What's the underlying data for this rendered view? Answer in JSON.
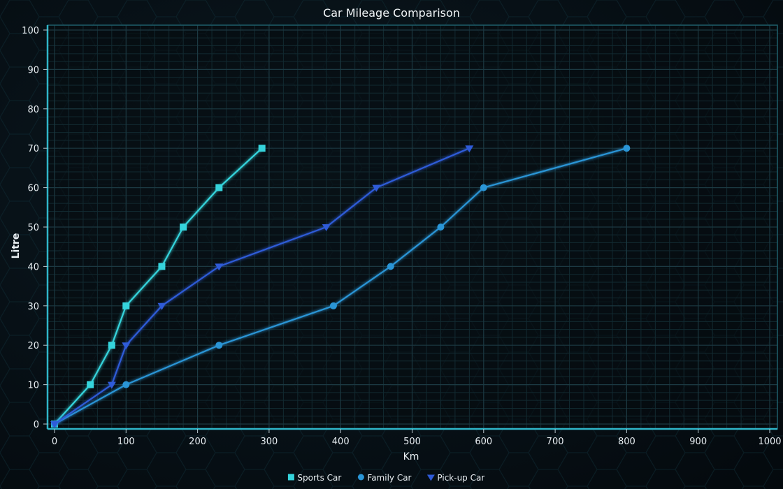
{
  "chart_data": {
    "type": "line",
    "title": "Car Mileage Comparison",
    "xlabel": "Km",
    "ylabel": "Litre",
    "xlim": [
      0,
      1000
    ],
    "ylim": [
      0,
      100
    ],
    "x_ticks": [
      0,
      100,
      200,
      300,
      400,
      500,
      600,
      700,
      800,
      900,
      1000
    ],
    "y_ticks": [
      0,
      10,
      20,
      30,
      40,
      50,
      60,
      70,
      80,
      90,
      100
    ],
    "grid": true,
    "legend_position": "bottom-center",
    "series": [
      {
        "name": "Sports Car",
        "color": "#35d4dc",
        "marker": "square",
        "points": [
          [
            0,
            0
          ],
          [
            50,
            10
          ],
          [
            80,
            20
          ],
          [
            100,
            30
          ],
          [
            150,
            40
          ],
          [
            180,
            50
          ],
          [
            230,
            60
          ],
          [
            290,
            70
          ]
        ]
      },
      {
        "name": "Family Car",
        "color": "#2a95d6",
        "marker": "circle",
        "points": [
          [
            0,
            0
          ],
          [
            100,
            10
          ],
          [
            230,
            20
          ],
          [
            390,
            30
          ],
          [
            470,
            40
          ],
          [
            540,
            50
          ],
          [
            600,
            60
          ],
          [
            800,
            70
          ]
        ]
      },
      {
        "name": "Pick-up Car",
        "color": "#2f5bd8",
        "marker": "triangle-down",
        "points": [
          [
            0,
            0
          ],
          [
            80,
            10
          ],
          [
            100,
            20
          ],
          [
            150,
            30
          ],
          [
            230,
            40
          ],
          [
            380,
            50
          ],
          [
            450,
            60
          ],
          [
            580,
            70
          ]
        ]
      }
    ]
  }
}
